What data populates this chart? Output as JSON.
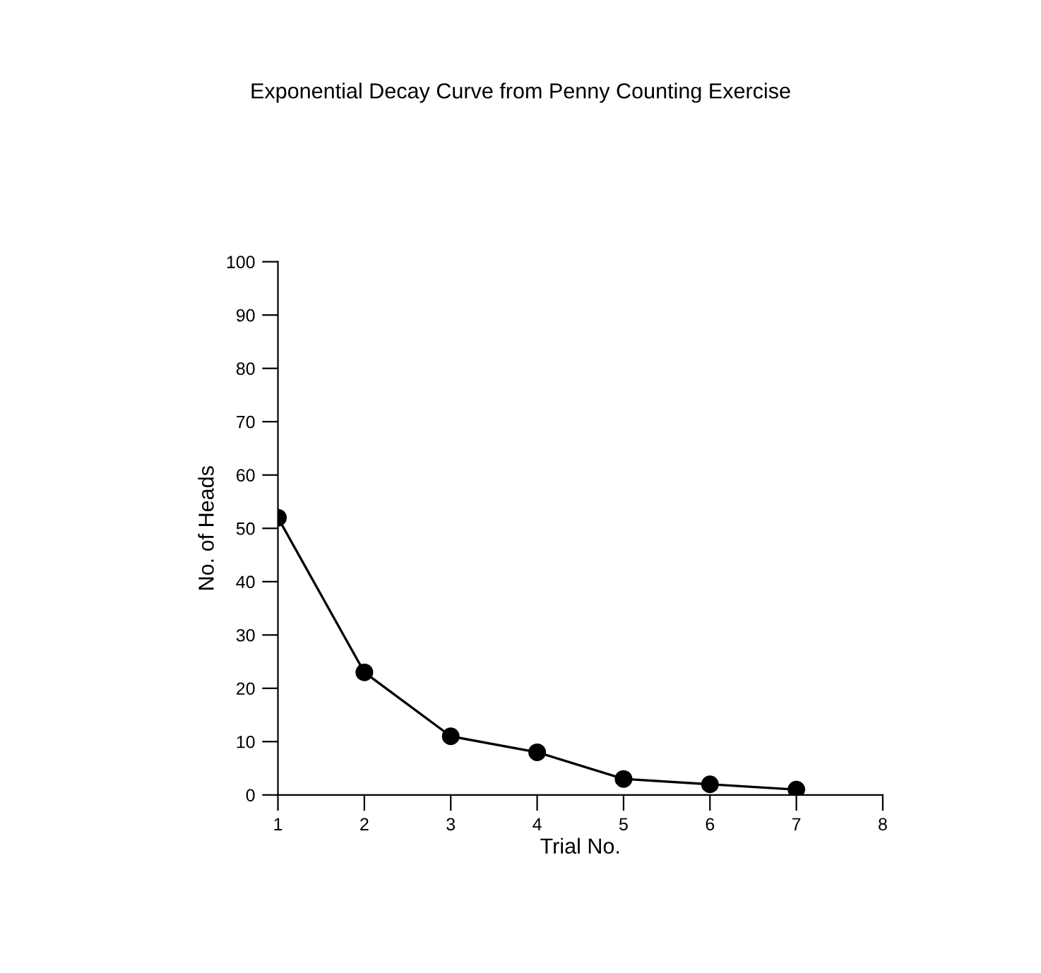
{
  "chart_data": {
    "type": "line",
    "title": "Exponential Decay Curve from Penny Counting Exercise",
    "xlabel": "Trial No.",
    "ylabel": "No. of Heads",
    "x": [
      1,
      2,
      3,
      4,
      5,
      6,
      7
    ],
    "series": [
      {
        "color": "#000000",
        "values": [
          52,
          23,
          11,
          8,
          3,
          2,
          1
        ]
      }
    ],
    "xlim": [
      1,
      8
    ],
    "xticks": [
      1,
      2,
      3,
      4,
      5,
      6,
      7,
      8
    ],
    "ylim": [
      0,
      100
    ],
    "yticks": [
      0,
      10,
      20,
      30,
      40,
      50,
      60,
      70,
      80,
      90,
      100
    ],
    "marker": "circle",
    "line_style": "solid",
    "grid": false
  }
}
